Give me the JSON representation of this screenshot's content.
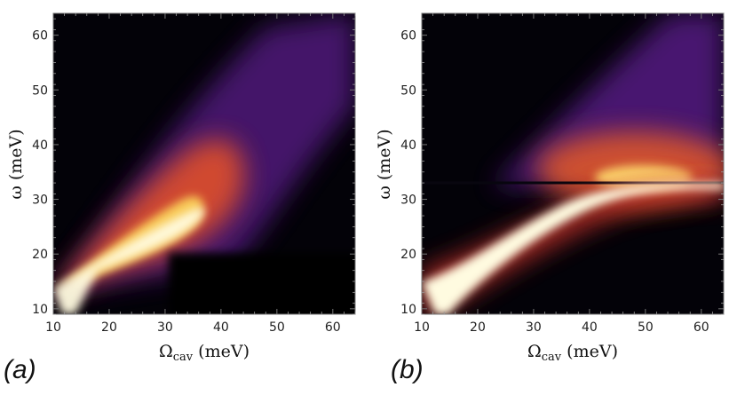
{
  "chart_data": [
    {
      "type": "heatmap",
      "panel_label": "(a)",
      "xlabel": "Ω",
      "xlabel_sub": "cav",
      "xlabel_unit": " (meV)",
      "ylabel": "ω (meV)",
      "xlim": [
        10,
        64
      ],
      "ylim": [
        9,
        64
      ],
      "xticks": [
        10,
        20,
        30,
        40,
        50,
        60
      ],
      "yticks": [
        10,
        20,
        30,
        40,
        50,
        60
      ],
      "colormap": "inferno",
      "features": {
        "lower_branch": [
          [
            10,
            13
          ],
          [
            15,
            16
          ],
          [
            20,
            18.5
          ],
          [
            25,
            20.5
          ],
          [
            30,
            23
          ],
          [
            35,
            27
          ]
        ],
        "upper_glow_center": [
          33,
          27
        ],
        "phonon_line_meV": null
      }
    },
    {
      "type": "heatmap",
      "panel_label": "(b)",
      "xlabel": "Ω",
      "xlabel_sub": "cav",
      "xlabel_unit": " (meV)",
      "ylabel": "ω (meV)",
      "xlim": [
        10,
        64
      ],
      "ylim": [
        9,
        64
      ],
      "xticks": [
        10,
        20,
        30,
        40,
        50,
        60
      ],
      "yticks": [
        10,
        20,
        30,
        40,
        50,
        60
      ],
      "colormap": "inferno",
      "features": {
        "lower_branch": [
          [
            10,
            13
          ],
          [
            15,
            16
          ],
          [
            20,
            19
          ],
          [
            25,
            22
          ],
          [
            30,
            25.5
          ],
          [
            35,
            28.5
          ],
          [
            40,
            31
          ],
          [
            45,
            32.6
          ],
          [
            50,
            33.1
          ],
          [
            60,
            33.4
          ]
        ],
        "upper_glow_center": [
          47,
          34
        ],
        "phonon_line_meV": 33.5
      }
    }
  ]
}
